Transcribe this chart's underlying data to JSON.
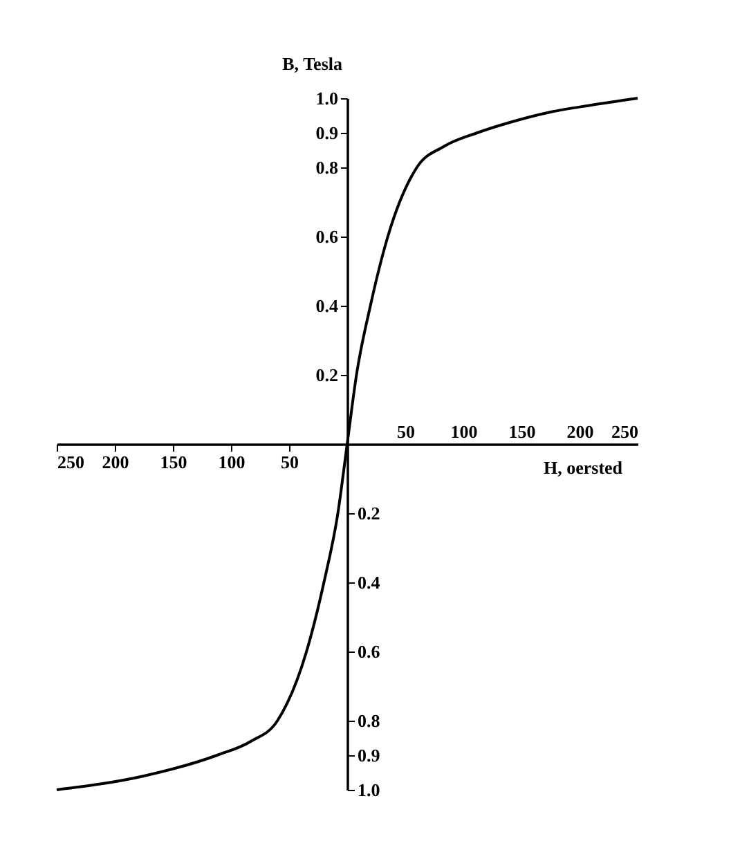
{
  "chart_data": {
    "type": "line",
    "xlabel": "H, oersted",
    "ylabel": "B, Tesla",
    "color": "#000000",
    "x": [
      -250,
      -175,
      -112,
      -83,
      -60,
      -35,
      -20,
      -8,
      0,
      8,
      20,
      35,
      60,
      83,
      112,
      140,
      175,
      210,
      250
    ],
    "values": [
      -1,
      -0.96,
      -0.9,
      -0.86,
      -0.8,
      -0.6,
      -0.4,
      -0.2,
      0,
      0.2,
      0.4,
      0.6,
      0.8,
      0.86,
      0.9,
      0.93,
      0.96,
      0.98,
      1.0
    ],
    "xlim": [
      -250,
      250
    ],
    "ylim": [
      -1,
      1
    ],
    "xticks": [
      {
        "value": -250,
        "label": "250"
      },
      {
        "value": -200,
        "label": "200"
      },
      {
        "value": -150,
        "label": "150"
      },
      {
        "value": -100,
        "label": "100"
      },
      {
        "value": -50,
        "label": "50"
      }
    ],
    "x2lim": [
      -250,
      250
    ],
    "x2ticks": [
      {
        "value": 50,
        "label": "50"
      },
      {
        "value": 100,
        "label": "100"
      },
      {
        "value": 150,
        "label": "150"
      },
      {
        "value": 200,
        "label": "200"
      },
      {
        "value": 250,
        "label": "250"
      }
    ],
    "y2lim": [
      -1,
      1
    ],
    "y2ticks": [
      {
        "value": -1,
        "label": "1.0"
      },
      {
        "value": -0.9,
        "label": "0.9"
      },
      {
        "value": -0.8,
        "label": "0.8"
      },
      {
        "value": -0.6,
        "label": "0.6"
      },
      {
        "value": -0.4,
        "label": "0.4"
      },
      {
        "value": -0.2,
        "label": "0.2"
      }
    ],
    "yticks": [
      {
        "value": 0,
        "label": null
      },
      {
        "value": 0.2,
        "label": "0.2"
      },
      {
        "value": 0.4,
        "label": "0.4"
      },
      {
        "value": 0.6,
        "label": "0.6"
      },
      {
        "value": 0.8,
        "label": "0.8"
      },
      {
        "value": 0.9,
        "label": "0.9"
      },
      {
        "value": 1.0,
        "label": "1.0"
      }
    ]
  }
}
